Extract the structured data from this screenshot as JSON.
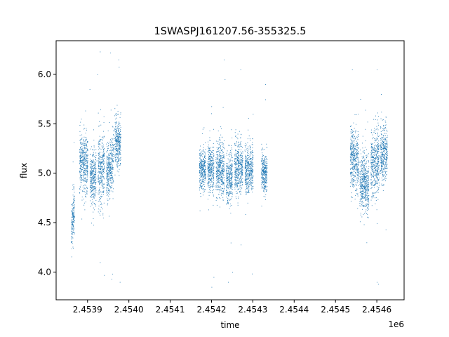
{
  "chart_data": {
    "type": "scatter",
    "title": "1SWASPJ161207.56-355325.5",
    "xlabel": "time",
    "ylabel": "flux",
    "x_offset_label": "1e6",
    "xlim": [
      2453824.0,
      2454666.0
    ],
    "ylim": [
      3.72,
      6.34
    ],
    "x_ticks": [
      2453900,
      2454000,
      2454100,
      2454200,
      2454300,
      2454400,
      2454500,
      2454600
    ],
    "x_tick_labels": [
      "2.4539",
      "2.4540",
      "2.4541",
      "2.4542",
      "2.4543",
      "2.4544",
      "2.4545",
      "2.4546"
    ],
    "y_ticks": [
      4.0,
      4.5,
      5.0,
      5.5,
      6.0
    ],
    "y_tick_labels": [
      "4.0",
      "4.5",
      "5.0",
      "5.5",
      "6.0"
    ],
    "grid": false,
    "marker_color": "#1f77b4",
    "segments": [
      {
        "x_start": 2453860,
        "x_end": 2453868,
        "flux_center": 4.55,
        "flux_spread": 0.12,
        "trend": 0.25
      },
      {
        "x_start": 2453880,
        "x_end": 2453900,
        "flux_center": 5.1,
        "flux_spread": 0.14,
        "trend": 0.0
      },
      {
        "x_start": 2453905,
        "x_end": 2453920,
        "flux_center": 4.95,
        "flux_spread": 0.14,
        "trend": 0.0
      },
      {
        "x_start": 2453925,
        "x_end": 2453940,
        "flux_center": 5.05,
        "flux_spread": 0.18,
        "trend": 0.05
      },
      {
        "x_start": 2453945,
        "x_end": 2453962,
        "flux_center": 5.05,
        "flux_spread": 0.15,
        "trend": 0.1
      },
      {
        "x_start": 2453965,
        "x_end": 2453980,
        "flux_center": 5.3,
        "flux_spread": 0.12,
        "trend": 0.0
      },
      {
        "x_start": 2454170,
        "x_end": 2454185,
        "flux_center": 5.05,
        "flux_spread": 0.1,
        "trend": 0.0
      },
      {
        "x_start": 2454190,
        "x_end": 2454205,
        "flux_center": 5.05,
        "flux_spread": 0.12,
        "trend": 0.0
      },
      {
        "x_start": 2454210,
        "x_end": 2454230,
        "flux_center": 5.05,
        "flux_spread": 0.14,
        "trend": 0.0
      },
      {
        "x_start": 2454235,
        "x_end": 2454250,
        "flux_center": 4.95,
        "flux_spread": 0.12,
        "trend": 0.0
      },
      {
        "x_start": 2454255,
        "x_end": 2454275,
        "flux_center": 5.05,
        "flux_spread": 0.14,
        "trend": 0.0
      },
      {
        "x_start": 2454280,
        "x_end": 2454300,
        "flux_center": 5.05,
        "flux_spread": 0.12,
        "trend": 0.0
      },
      {
        "x_start": 2454320,
        "x_end": 2454334,
        "flux_center": 5.0,
        "flux_spread": 0.1,
        "trend": 0.0
      },
      {
        "x_start": 2454535,
        "x_end": 2454555,
        "flux_center": 5.15,
        "flux_spread": 0.15,
        "trend": -0.1
      },
      {
        "x_start": 2454558,
        "x_end": 2454580,
        "flux_center": 4.9,
        "flux_spread": 0.15,
        "trend": 0.0
      },
      {
        "x_start": 2454585,
        "x_end": 2454605,
        "flux_center": 5.1,
        "flux_spread": 0.16,
        "trend": 0.0
      },
      {
        "x_start": 2454608,
        "x_end": 2454625,
        "flux_center": 5.2,
        "flux_spread": 0.15,
        "trend": 0.0
      }
    ],
    "outliers": [
      {
        "x": 2453905,
        "y": 5.85
      },
      {
        "x": 2453924,
        "y": 6.0
      },
      {
        "x": 2453930,
        "y": 6.23
      },
      {
        "x": 2453940,
        "y": 3.97
      },
      {
        "x": 2453955,
        "y": 6.22
      },
      {
        "x": 2453958,
        "y": 3.93
      },
      {
        "x": 2453975,
        "y": 6.15
      },
      {
        "x": 2453978,
        "y": 3.9
      },
      {
        "x": 2453930,
        "y": 4.1
      },
      {
        "x": 2454200,
        "y": 3.85
      },
      {
        "x": 2454205,
        "y": 3.95
      },
      {
        "x": 2454230,
        "y": 6.15
      },
      {
        "x": 2454232,
        "y": 5.95
      },
      {
        "x": 2454240,
        "y": 3.9
      },
      {
        "x": 2454250,
        "y": 4.0
      },
      {
        "x": 2454270,
        "y": 6.05
      },
      {
        "x": 2454300,
        "y": 5.6
      },
      {
        "x": 2454330,
        "y": 5.9
      },
      {
        "x": 2454540,
        "y": 6.05
      },
      {
        "x": 2454560,
        "y": 5.75
      },
      {
        "x": 2454575,
        "y": 4.3
      },
      {
        "x": 2454600,
        "y": 6.05
      },
      {
        "x": 2454603,
        "y": 3.88
      },
      {
        "x": 2454610,
        "y": 5.8
      },
      {
        "x": 2454600,
        "y": 3.9
      }
    ]
  }
}
